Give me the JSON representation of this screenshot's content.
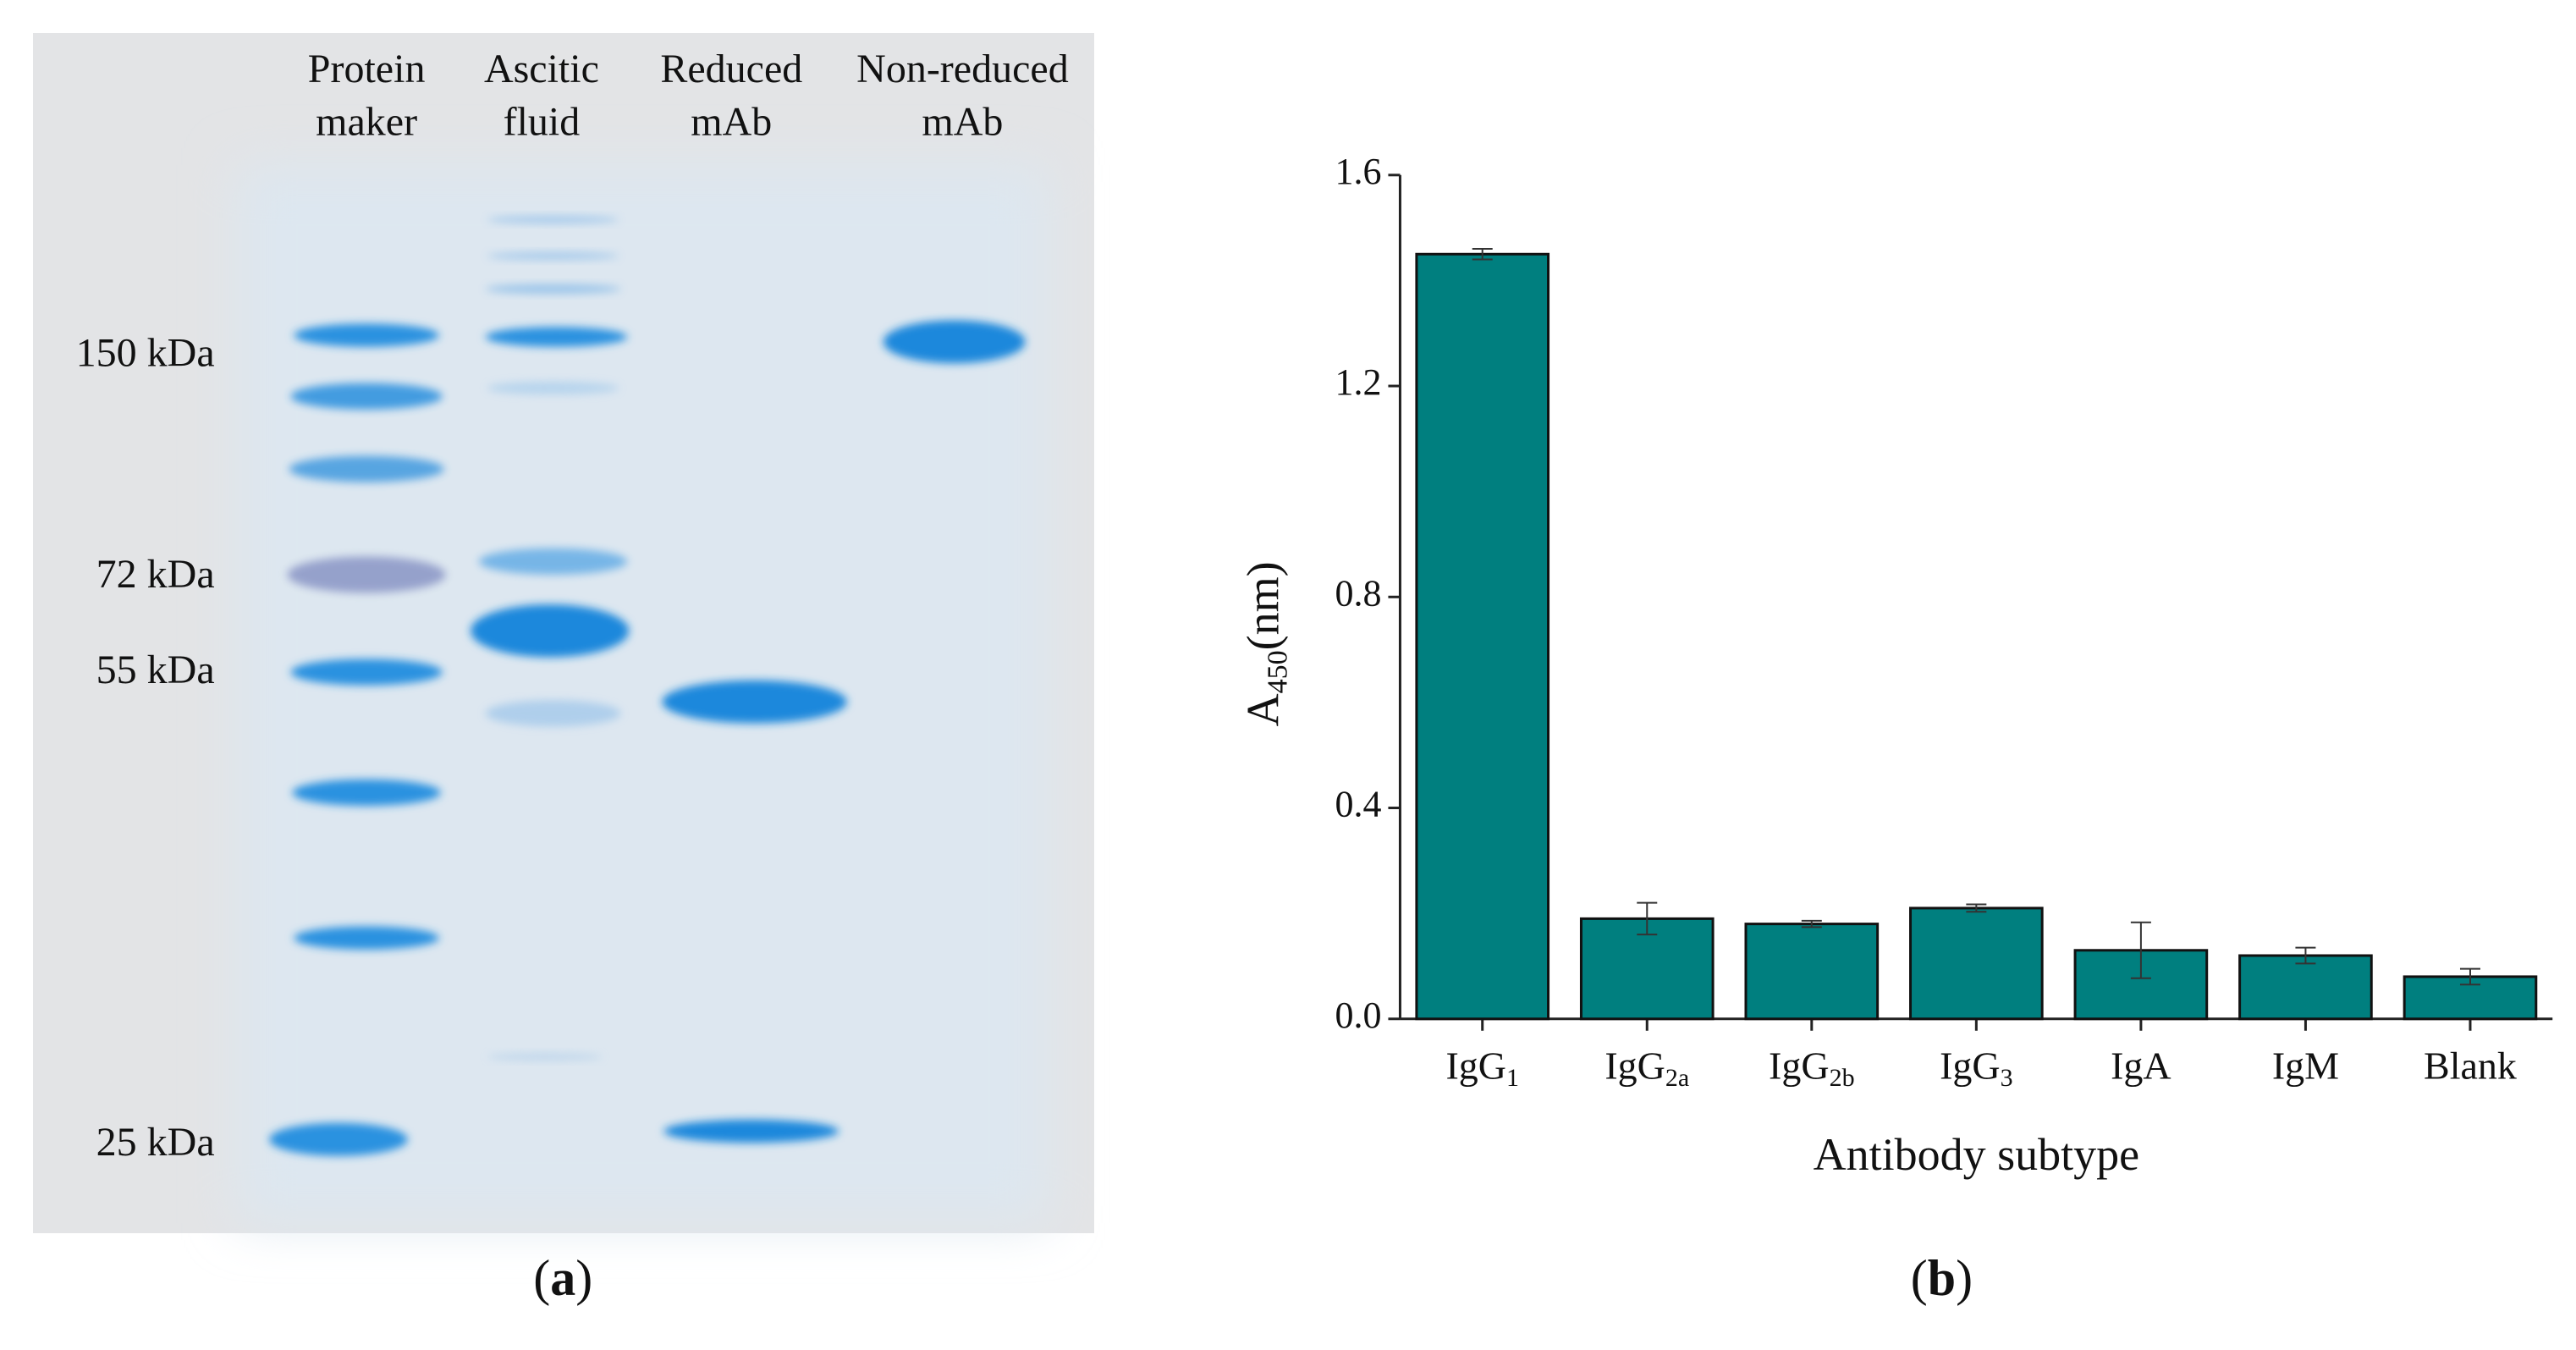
{
  "gel": {
    "lanes": [
      {
        "lines": [
          "Protein",
          "maker"
        ]
      },
      {
        "lines": [
          "Ascitic",
          "fluid"
        ]
      },
      {
        "lines": [
          "Reduced",
          "mAb"
        ]
      },
      {
        "lines": [
          "Non-reduced",
          "mAb"
        ]
      }
    ],
    "markers": [
      "150 kDa",
      "72 kDa",
      "55 kDa",
      "25 kDa"
    ],
    "caption": "a"
  },
  "chart_data": {
    "type": "bar",
    "caption": "b",
    "categories": [
      "IgG",
      "IgG",
      "IgG",
      "IgG",
      "IgA",
      "IgM",
      "Blank"
    ],
    "category_subscripts": [
      "1",
      "2a",
      "2b",
      "3",
      null,
      null,
      null
    ],
    "values": [
      1.45,
      0.19,
      0.18,
      0.21,
      0.13,
      0.12,
      0.08
    ],
    "errors": [
      0.01,
      0.03,
      0.006,
      0.007,
      0.053,
      0.015,
      0.015
    ],
    "color": "#007f7f",
    "x_label": "Antibody subtype",
    "y_label": "A",
    "y_label_subscript": "450",
    "y_label_suffix": "(nm)",
    "ylim": [
      0,
      1.6
    ],
    "yticks": [
      {
        "value": 0,
        "label": "0.0"
      },
      {
        "value": 0.4,
        "label": "0.4"
      },
      {
        "value": 0.8,
        "label": "0.8"
      },
      {
        "value": 1.2,
        "label": "1.2"
      },
      {
        "value": 1.6,
        "label": "1.6"
      }
    ]
  }
}
